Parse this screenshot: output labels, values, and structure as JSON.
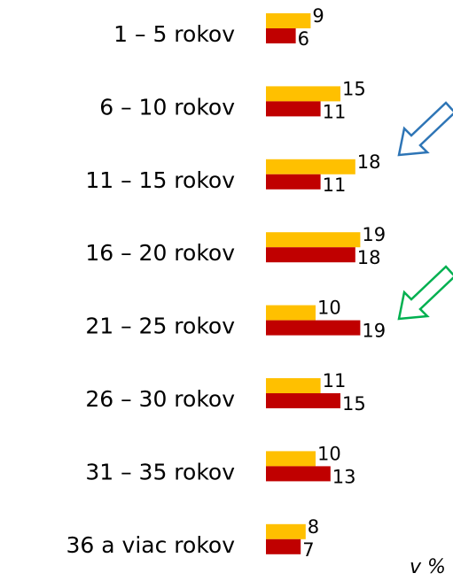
{
  "chart_data": {
    "type": "bar",
    "orientation": "horizontal",
    "categories": [
      "1 – 5 rokov",
      "6 – 10 rokov",
      "11 – 15 rokov",
      "16 – 20 rokov",
      "21 – 25 rokov",
      "26 – 30 rokov",
      "31 – 35 rokov",
      "36 a viac rokov"
    ],
    "series": [
      {
        "color": "#FFC000",
        "values": [
          9,
          15,
          18,
          19,
          10,
          11,
          10,
          8
        ]
      },
      {
        "color": "#C00000",
        "values": [
          6,
          11,
          11,
          18,
          19,
          15,
          13,
          7
        ]
      }
    ],
    "annotation": "v %"
  }
}
